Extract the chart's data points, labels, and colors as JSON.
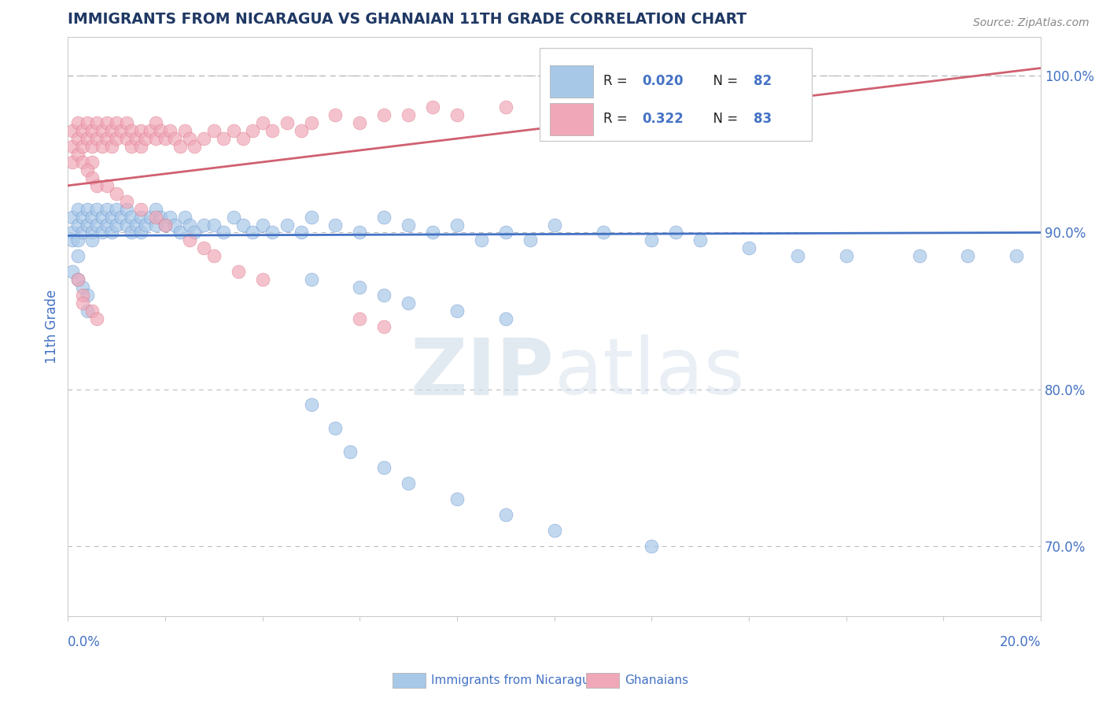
{
  "title": "IMMIGRANTS FROM NICARAGUA VS GHANAIAN 11TH GRADE CORRELATION CHART",
  "source_text": "Source: ZipAtlas.com",
  "ylabel": "11th Grade",
  "right_ytick_vals": [
    0.7,
    0.8,
    0.9,
    1.0
  ],
  "xmin": 0.0,
  "xmax": 0.2,
  "ymin": 0.655,
  "ymax": 1.025,
  "legend_blue_R": "0.020",
  "legend_blue_N": "82",
  "legend_pink_R": "0.322",
  "legend_pink_N": "83",
  "blue_color": "#a8c8e8",
  "pink_color": "#f0a8b8",
  "blue_line_color": "#4472c4",
  "pink_line_color": "#d06070",
  "title_color": "#1f3864",
  "axis_label_color": "#4472c4",
  "dotted_color": "#bbbbbb",
  "blue_trendline_x": [
    0.0,
    0.2
  ],
  "blue_trendline_y": [
    0.898,
    0.9
  ],
  "pink_trendline_x": [
    0.0,
    0.2
  ],
  "pink_trendline_y": [
    0.93,
    1.005
  ],
  "dotted_line_y": 1.0,
  "blue_scatter_x": [
    0.001,
    0.001,
    0.001,
    0.002,
    0.002,
    0.002,
    0.002,
    0.003,
    0.003,
    0.004,
    0.004,
    0.005,
    0.005,
    0.005,
    0.006,
    0.006,
    0.007,
    0.007,
    0.008,
    0.008,
    0.009,
    0.009,
    0.01,
    0.01,
    0.011,
    0.012,
    0.012,
    0.013,
    0.013,
    0.014,
    0.015,
    0.015,
    0.016,
    0.017,
    0.018,
    0.018,
    0.019,
    0.02,
    0.021,
    0.022,
    0.023,
    0.024,
    0.025,
    0.026,
    0.028,
    0.03,
    0.032,
    0.034,
    0.036,
    0.038,
    0.04,
    0.042,
    0.045,
    0.048,
    0.05,
    0.055,
    0.06,
    0.065,
    0.07,
    0.075,
    0.08,
    0.09,
    0.1,
    0.11,
    0.12,
    0.125,
    0.085,
    0.095,
    0.13,
    0.14,
    0.15,
    0.16,
    0.175,
    0.185,
    0.195,
    0.05,
    0.06,
    0.065,
    0.07,
    0.08,
    0.09
  ],
  "blue_scatter_y": [
    0.91,
    0.9,
    0.895,
    0.915,
    0.905,
    0.895,
    0.885,
    0.91,
    0.9,
    0.915,
    0.905,
    0.91,
    0.9,
    0.895,
    0.915,
    0.905,
    0.91,
    0.9,
    0.915,
    0.905,
    0.91,
    0.9,
    0.915,
    0.905,
    0.91,
    0.915,
    0.905,
    0.91,
    0.9,
    0.905,
    0.91,
    0.9,
    0.905,
    0.91,
    0.915,
    0.905,
    0.91,
    0.905,
    0.91,
    0.905,
    0.9,
    0.91,
    0.905,
    0.9,
    0.905,
    0.905,
    0.9,
    0.91,
    0.905,
    0.9,
    0.905,
    0.9,
    0.905,
    0.9,
    0.91,
    0.905,
    0.9,
    0.91,
    0.905,
    0.9,
    0.905,
    0.9,
    0.905,
    0.9,
    0.895,
    0.9,
    0.895,
    0.895,
    0.895,
    0.89,
    0.885,
    0.885,
    0.885,
    0.885,
    0.885,
    0.87,
    0.865,
    0.86,
    0.855,
    0.85,
    0.845
  ],
  "blue_outlier_x": [
    0.001,
    0.002,
    0.003,
    0.004,
    0.004,
    0.05,
    0.055,
    0.058,
    0.065,
    0.07,
    0.08,
    0.09,
    0.1,
    0.12
  ],
  "blue_outlier_y": [
    0.875,
    0.87,
    0.865,
    0.86,
    0.85,
    0.79,
    0.775,
    0.76,
    0.75,
    0.74,
    0.73,
    0.72,
    0.71,
    0.7
  ],
  "pink_scatter_x": [
    0.001,
    0.001,
    0.001,
    0.002,
    0.002,
    0.002,
    0.003,
    0.003,
    0.003,
    0.004,
    0.004,
    0.005,
    0.005,
    0.005,
    0.006,
    0.006,
    0.007,
    0.007,
    0.008,
    0.008,
    0.009,
    0.009,
    0.01,
    0.01,
    0.011,
    0.012,
    0.012,
    0.013,
    0.013,
    0.014,
    0.015,
    0.015,
    0.016,
    0.017,
    0.018,
    0.018,
    0.019,
    0.02,
    0.021,
    0.022,
    0.023,
    0.024,
    0.025,
    0.026,
    0.028,
    0.03,
    0.032,
    0.034,
    0.036,
    0.038,
    0.04,
    0.042,
    0.045,
    0.048,
    0.05,
    0.055,
    0.06,
    0.065,
    0.07,
    0.075,
    0.08,
    0.09,
    0.1,
    0.11,
    0.004,
    0.005,
    0.006,
    0.008,
    0.01,
    0.012,
    0.015,
    0.018,
    0.02,
    0.025,
    0.028,
    0.03,
    0.035,
    0.04
  ],
  "pink_scatter_y": [
    0.965,
    0.955,
    0.945,
    0.97,
    0.96,
    0.95,
    0.965,
    0.955,
    0.945,
    0.97,
    0.96,
    0.965,
    0.955,
    0.945,
    0.97,
    0.96,
    0.965,
    0.955,
    0.97,
    0.96,
    0.965,
    0.955,
    0.97,
    0.96,
    0.965,
    0.97,
    0.96,
    0.965,
    0.955,
    0.96,
    0.965,
    0.955,
    0.96,
    0.965,
    0.97,
    0.96,
    0.965,
    0.96,
    0.965,
    0.96,
    0.955,
    0.965,
    0.96,
    0.955,
    0.96,
    0.965,
    0.96,
    0.965,
    0.96,
    0.965,
    0.97,
    0.965,
    0.97,
    0.965,
    0.97,
    0.975,
    0.97,
    0.975,
    0.975,
    0.98,
    0.975,
    0.98,
    0.985,
    0.99,
    0.94,
    0.935,
    0.93,
    0.93,
    0.925,
    0.92,
    0.915,
    0.91,
    0.905,
    0.895,
    0.89,
    0.885,
    0.875,
    0.87
  ],
  "pink_outlier_x": [
    0.002,
    0.003,
    0.003,
    0.005,
    0.006,
    0.06,
    0.065
  ],
  "pink_outlier_y": [
    0.87,
    0.86,
    0.855,
    0.85,
    0.845,
    0.845,
    0.84
  ]
}
